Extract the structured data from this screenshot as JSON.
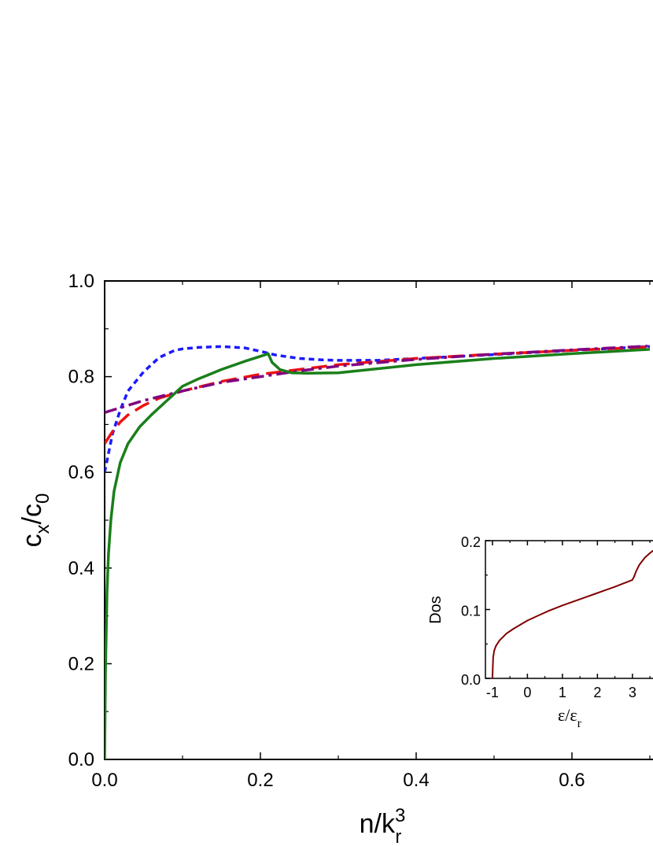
{
  "chart_data": [
    {
      "type": "line",
      "title": "",
      "xlabel": {
        "base": "n/k",
        "sup": "3",
        "sub": "r"
      },
      "ylabel": {
        "c": "c",
        "sub_x": "x",
        "slash": "/",
        "c0": "c",
        "sub_0": "0"
      },
      "xlim": [
        0.0,
        0.7
      ],
      "ylim": [
        0.0,
        1.0
      ],
      "xticks": [
        "0.0",
        "0.2",
        "0.4",
        "0.6"
      ],
      "yticks": [
        "0.0",
        "0.2",
        "0.4",
        "0.6",
        "0.8",
        "1.0"
      ],
      "series": [
        {
          "style": "short-dash",
          "color": "#1a1aff",
          "x": [
            0.0,
            0.01,
            0.02,
            0.03,
            0.05,
            0.07,
            0.09,
            0.1,
            0.12,
            0.15,
            0.18,
            0.2,
            0.22,
            0.25,
            0.28,
            0.3,
            0.35,
            0.4,
            0.5,
            0.6,
            0.7
          ],
          "y": [
            0.6,
            0.68,
            0.73,
            0.77,
            0.81,
            0.84,
            0.855,
            0.858,
            0.861,
            0.863,
            0.86,
            0.853,
            0.845,
            0.838,
            0.835,
            0.834,
            0.834,
            0.838,
            0.846,
            0.855,
            0.863
          ]
        },
        {
          "style": "long-dash",
          "color": "#ee1111",
          "x": [
            0.0,
            0.01,
            0.02,
            0.03,
            0.05,
            0.07,
            0.1,
            0.15,
            0.2,
            0.25,
            0.3,
            0.4,
            0.5,
            0.6,
            0.7
          ],
          "y": [
            0.66,
            0.685,
            0.705,
            0.72,
            0.74,
            0.755,
            0.77,
            0.79,
            0.805,
            0.815,
            0.825,
            0.838,
            0.847,
            0.855,
            0.862
          ]
        },
        {
          "style": "dash-dot",
          "color": "#800080",
          "x": [
            0.0,
            0.05,
            0.1,
            0.15,
            0.2,
            0.25,
            0.3,
            0.4,
            0.5,
            0.6,
            0.7
          ],
          "y": [
            0.725,
            0.75,
            0.77,
            0.788,
            0.8,
            0.812,
            0.822,
            0.836,
            0.847,
            0.856,
            0.864
          ]
        },
        {
          "style": "solid",
          "color": "#1a7f1a",
          "x": [
            0.0,
            0.001,
            0.003,
            0.005,
            0.008,
            0.012,
            0.02,
            0.03,
            0.045,
            0.06,
            0.08,
            0.1,
            0.12,
            0.15,
            0.18,
            0.205,
            0.21,
            0.215,
            0.225,
            0.24,
            0.26,
            0.3,
            0.4,
            0.5,
            0.6,
            0.7
          ],
          "y": [
            0.0,
            0.18,
            0.35,
            0.43,
            0.5,
            0.56,
            0.62,
            0.66,
            0.695,
            0.72,
            0.75,
            0.78,
            0.795,
            0.815,
            0.832,
            0.845,
            0.848,
            0.83,
            0.815,
            0.808,
            0.807,
            0.808,
            0.825,
            0.838,
            0.848,
            0.857
          ]
        }
      ]
    },
    {
      "type": "line",
      "title": "",
      "xlabel": {
        "base": "ε/ε",
        "sub": "r"
      },
      "ylabel": "Dos",
      "xlim": [
        -1.2,
        3.7
      ],
      "ylim": [
        0.0,
        0.2
      ],
      "xticks": [
        "-1",
        "0",
        "1",
        "2",
        "3"
      ],
      "yticks": [
        "0.0",
        "0.1",
        "0.2"
      ],
      "series": [
        {
          "style": "solid",
          "color": "#800000",
          "x": [
            -1.0,
            -0.98,
            -0.95,
            -0.9,
            -0.8,
            -0.6,
            -0.4,
            -0.2,
            0.0,
            0.3,
            0.6,
            1.0,
            1.5,
            2.0,
            2.5,
            3.0,
            3.05,
            3.1,
            3.2,
            3.35,
            3.5,
            3.7
          ],
          "y": [
            0.0,
            0.03,
            0.04,
            0.047,
            0.055,
            0.065,
            0.072,
            0.078,
            0.084,
            0.091,
            0.098,
            0.106,
            0.115,
            0.124,
            0.133,
            0.143,
            0.148,
            0.155,
            0.165,
            0.175,
            0.182,
            0.19
          ]
        }
      ]
    }
  ]
}
